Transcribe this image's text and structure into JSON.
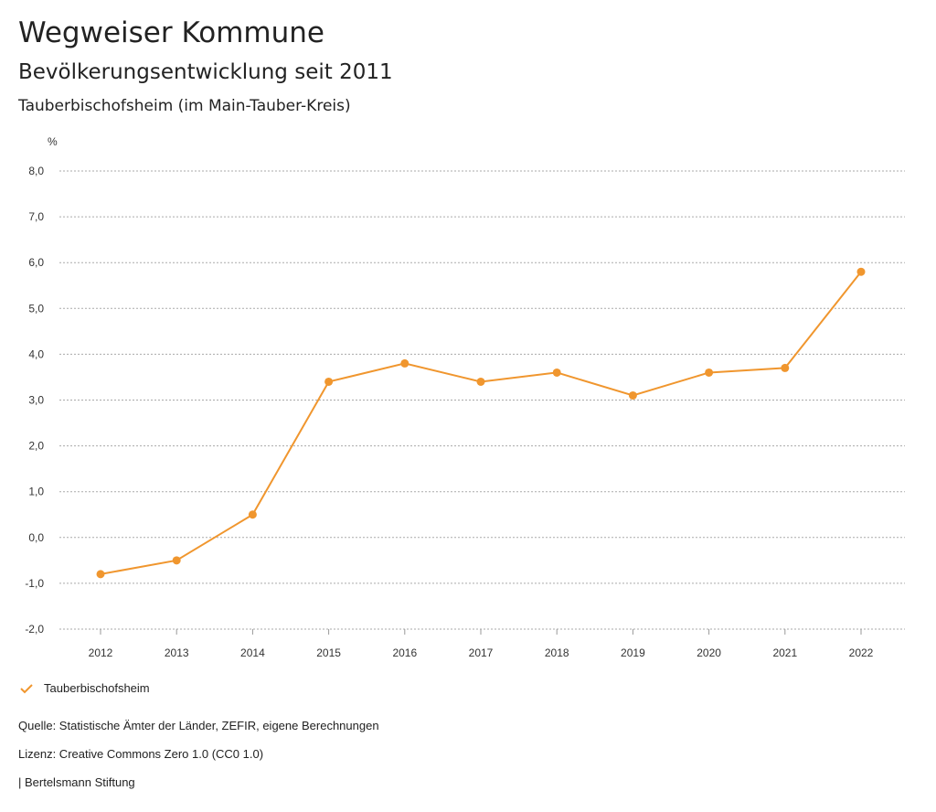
{
  "header": {
    "title": "Wegweiser Kommune",
    "subtitle": "Bevölkerungsentwicklung seit 2011",
    "region": "Tauberbischofsheim (im Main-Tauber-Kreis)"
  },
  "chart_data": {
    "type": "line",
    "ylabel": "%",
    "ylim": [
      -2,
      8
    ],
    "yticks": [
      "-2,0",
      "-1,0",
      "0,0",
      "1,0",
      "2,0",
      "3,0",
      "4,0",
      "5,0",
      "6,0",
      "7,0",
      "8,0"
    ],
    "categories": [
      "2012",
      "2013",
      "2014",
      "2015",
      "2016",
      "2017",
      "2018",
      "2019",
      "2020",
      "2021",
      "2022"
    ],
    "series": [
      {
        "name": "Tauberbischofsheim",
        "color": "#f0962e",
        "values": [
          -0.8,
          -0.5,
          0.5,
          3.4,
          3.8,
          3.4,
          3.6,
          3.1,
          3.6,
          3.7,
          5.8
        ]
      }
    ],
    "grid": true,
    "legend": "bottom-left"
  },
  "footer": {
    "source": "Quelle: Statistische Ämter der Länder, ZEFIR, eigene Berechnungen",
    "license": "Lizenz: Creative Commons Zero 1.0 (CC0 1.0)",
    "publisher": "| Bertelsmann Stiftung"
  }
}
